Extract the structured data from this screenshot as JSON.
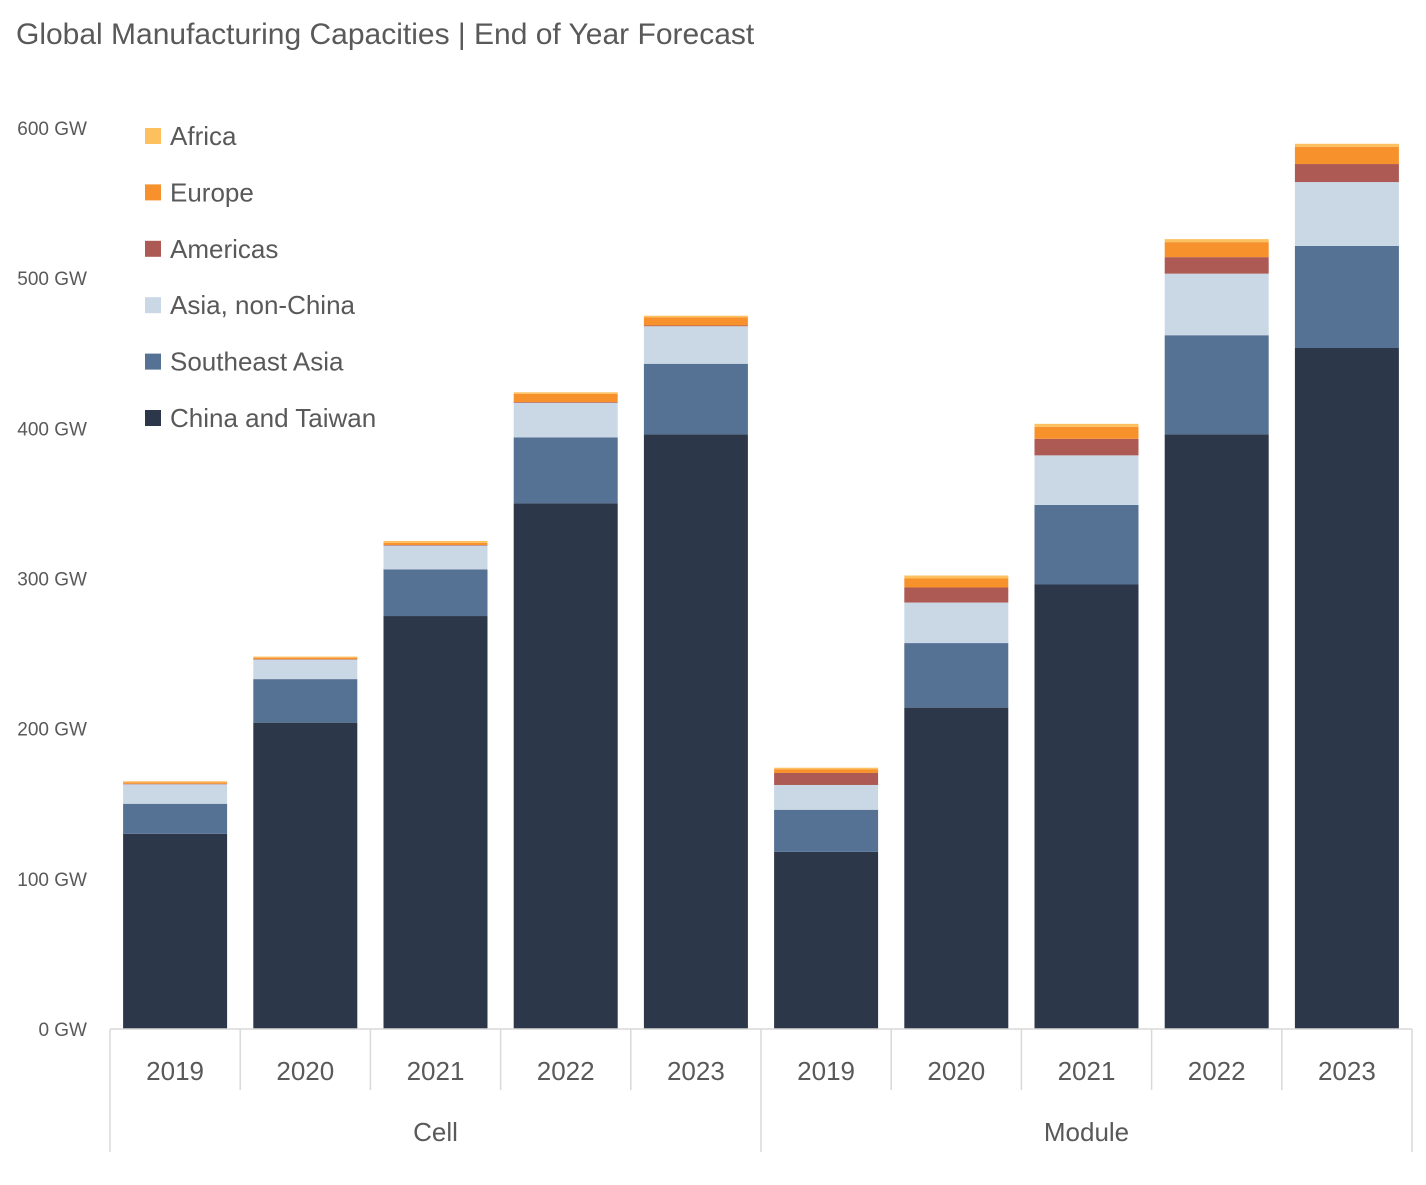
{
  "chart_data": {
    "type": "bar",
    "stacked": true,
    "title": "Global Manufacturing Capacities | End of Year Forecast",
    "xlabel": "",
    "ylabel": "",
    "ylim": [
      0,
      600
    ],
    "y_ticks": [
      "0 GW",
      "100 GW",
      "200 GW",
      "300 GW",
      "400 GW",
      "500 GW",
      "600 GW"
    ],
    "y_tick_values": [
      0,
      100,
      200,
      300,
      400,
      500,
      600
    ],
    "grid": false,
    "legend_placement": "top-left",
    "groups": [
      {
        "label": "Cell",
        "categories": [
          "2019",
          "2020",
          "2021",
          "2022",
          "2023"
        ]
      },
      {
        "label": "Module",
        "categories": [
          "2019",
          "2020",
          "2021",
          "2022",
          "2023"
        ]
      }
    ],
    "series": [
      {
        "name": "China and Taiwan",
        "color": "#2C3749",
        "values": [
          130,
          204,
          275,
          350,
          396,
          118,
          214,
          296,
          396,
          453.5
        ]
      },
      {
        "name": "Southeast Asia",
        "color": "#557194",
        "values": [
          20,
          29,
          31,
          44,
          47,
          28,
          43,
          53,
          66,
          68
        ]
      },
      {
        "name": "Asia, non-China",
        "color": "#CAD8E5",
        "values": [
          13,
          13,
          16,
          23,
          25,
          16.5,
          27,
          33,
          41,
          42.5
        ]
      },
      {
        "name": "Americas",
        "color": "#AD5A55",
        "values": [
          0.3,
          0.3,
          0.3,
          0.5,
          0.5,
          8,
          10,
          11,
          11,
          12
        ]
      },
      {
        "name": "Europe",
        "color": "#F7912C",
        "values": [
          1,
          1,
          1.5,
          5.5,
          5.5,
          2.5,
          6,
          8,
          10,
          11.5
        ]
      },
      {
        "name": "Africa",
        "color": "#FDC05E",
        "values": [
          0.7,
          0.7,
          1.2,
          1,
          1,
          1,
          2,
          2,
          2,
          2
        ]
      }
    ]
  }
}
